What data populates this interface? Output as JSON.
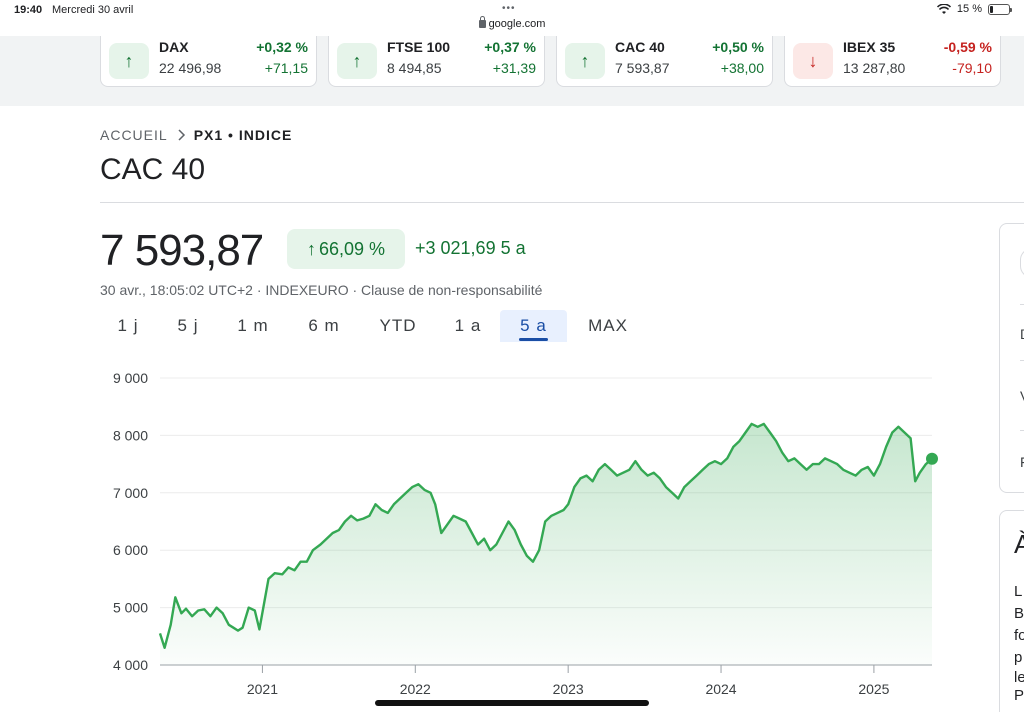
{
  "status_bar": {
    "time": "19:40",
    "date": "Mercredi 30 avril",
    "battery": "15 %"
  },
  "browser": {
    "url": "google.com"
  },
  "tickers": [
    {
      "name": "DAX",
      "value": "22 496,98",
      "pct": "+0,32 %",
      "change": "+71,15",
      "direction": "up",
      "arrow": "↑"
    },
    {
      "name": "FTSE 100",
      "value": "8 494,85",
      "pct": "+0,37 %",
      "change": "+31,39",
      "direction": "up",
      "arrow": "↑"
    },
    {
      "name": "CAC 40",
      "value": "7 593,87",
      "pct": "+0,50 %",
      "change": "+38,00",
      "direction": "up",
      "arrow": "↑"
    },
    {
      "name": "IBEX 35",
      "value": "13 287,80",
      "pct": "-0,59 %",
      "change": "-79,10",
      "direction": "down",
      "arrow": "↓"
    }
  ],
  "breadcrumb": {
    "home": "ACCUEIL",
    "current": "PX1 • INDICE"
  },
  "page_title": "CAC 40",
  "quote": {
    "price": "7 593,87",
    "pct_change": "66,09 %",
    "pct_arrow": "↑",
    "abs_change": "+3 021,69 5 a",
    "meta": "30 avr., 18:05:02 UTC+2 · INDEXEURO · Clause de non-responsabilité"
  },
  "range_tabs": [
    {
      "label": "1 j",
      "active": false
    },
    {
      "label": "5 j",
      "active": false
    },
    {
      "label": "1 m",
      "active": false
    },
    {
      "label": "6 m",
      "active": false
    },
    {
      "label": "YTD",
      "active": false
    },
    {
      "label": "1 a",
      "active": false
    },
    {
      "label": "5 a",
      "active": true
    },
    {
      "label": "MAX",
      "active": false
    }
  ],
  "side_panel": {
    "letters": [
      "D",
      "V",
      "F"
    ],
    "card2_heading": "À",
    "card2_letters": [
      "L",
      "B",
      "fo",
      "p",
      "le",
      "P"
    ]
  },
  "colors": {
    "positive": "#137333",
    "negative": "#c5221f",
    "line": "#34a853",
    "accent": "#1a4ea5"
  },
  "chart_data": {
    "type": "area",
    "title": "",
    "xlabel": "",
    "ylabel": "",
    "ylim": [
      4000,
      9000
    ],
    "yticks": [
      4000,
      5000,
      6000,
      7000,
      8000,
      9000
    ],
    "ytick_labels": [
      "4 000",
      "5 000",
      "6 000",
      "7 000",
      "8 000",
      "9 000"
    ],
    "xticks": [
      2021,
      2022,
      2023,
      2024,
      2025
    ],
    "xtick_labels": [
      "2021",
      "2022",
      "2023",
      "2024",
      "2025"
    ],
    "xlim": [
      2020.33,
      2025.38
    ],
    "grid": true,
    "series": [
      {
        "x": [
          2020.33,
          2020.36,
          2020.4,
          2020.43,
          2020.47,
          2020.5,
          2020.54,
          2020.58,
          2020.62,
          2020.66,
          2020.7,
          2020.74,
          2020.78,
          2020.81,
          2020.84,
          2020.87,
          2020.91,
          2020.95,
          2020.98,
          2021.04,
          2021.08,
          2021.13,
          2021.17,
          2021.21,
          2021.25,
          2021.29,
          2021.33,
          2021.38,
          2021.42,
          2021.46,
          2021.5,
          2021.54,
          2021.58,
          2021.62,
          2021.66,
          2021.7,
          2021.74,
          2021.78,
          2021.82,
          2021.86,
          2021.9,
          2021.94,
          2021.98,
          2022.02,
          2022.06,
          2022.1,
          2022.13,
          2022.17,
          2022.21,
          2022.25,
          2022.29,
          2022.33,
          2022.37,
          2022.41,
          2022.45,
          2022.49,
          2022.53,
          2022.57,
          2022.61,
          2022.65,
          2022.69,
          2022.73,
          2022.77,
          2022.81,
          2022.85,
          2022.89,
          2022.93,
          2022.97,
          2023.0,
          2023.04,
          2023.08,
          2023.12,
          2023.16,
          2023.2,
          2023.24,
          2023.28,
          2023.32,
          2023.36,
          2023.4,
          2023.44,
          2023.48,
          2023.52,
          2023.56,
          2023.6,
          2023.64,
          2023.68,
          2023.72,
          2023.76,
          2023.8,
          2023.84,
          2023.88,
          2023.92,
          2023.96,
          2024.0,
          2024.04,
          2024.08,
          2024.12,
          2024.16,
          2024.2,
          2024.24,
          2024.28,
          2024.32,
          2024.36,
          2024.4,
          2024.44,
          2024.48,
          2024.52,
          2024.56,
          2024.6,
          2024.64,
          2024.68,
          2024.72,
          2024.76,
          2024.8,
          2024.84,
          2024.88,
          2024.92,
          2024.96,
          2025.0,
          2025.04,
          2025.08,
          2025.12,
          2025.16,
          2025.2,
          2025.24,
          2025.27,
          2025.3,
          2025.34,
          2025.38
        ],
        "values": [
          4550,
          4300,
          4700,
          5180,
          4900,
          4980,
          4850,
          4950,
          4970,
          4850,
          5000,
          4900,
          4700,
          4650,
          4600,
          4650,
          5000,
          4950,
          4620,
          5500,
          5600,
          5580,
          5700,
          5650,
          5800,
          5800,
          6000,
          6100,
          6200,
          6300,
          6350,
          6500,
          6600,
          6520,
          6550,
          6600,
          6800,
          6700,
          6650,
          6800,
          6900,
          7000,
          7100,
          7150,
          7050,
          7000,
          6800,
          6300,
          6450,
          6600,
          6550,
          6500,
          6300,
          6100,
          6200,
          6000,
          6100,
          6300,
          6500,
          6350,
          6100,
          5900,
          5800,
          6000,
          6500,
          6600,
          6650,
          6700,
          6800,
          7100,
          7250,
          7300,
          7200,
          7400,
          7500,
          7400,
          7300,
          7350,
          7400,
          7550,
          7400,
          7300,
          7350,
          7250,
          7100,
          7000,
          6900,
          7100,
          7200,
          7300,
          7400,
          7500,
          7550,
          7500,
          7600,
          7800,
          7900,
          8050,
          8200,
          8150,
          8200,
          8050,
          7900,
          7700,
          7550,
          7600,
          7500,
          7400,
          7500,
          7500,
          7600,
          7550,
          7500,
          7400,
          7350,
          7300,
          7400,
          7450,
          7300,
          7500,
          7800,
          8050,
          8150,
          8050,
          7950,
          7200,
          7350,
          7500,
          7594
        ]
      }
    ]
  }
}
